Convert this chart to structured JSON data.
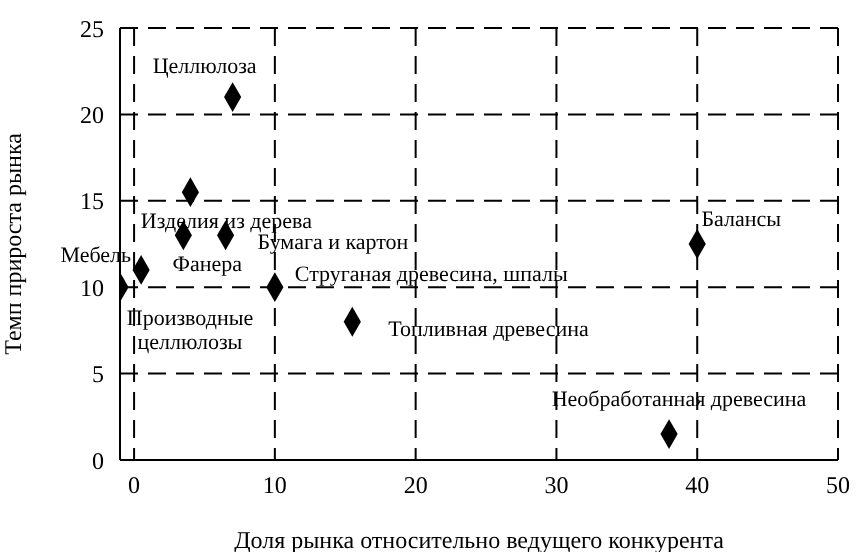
{
  "chart_data": {
    "type": "scatter",
    "xlabel": "Доля рынка относительно ведущего конкурента",
    "ylabel": "Темп прироста рынка",
    "x": [
      7,
      4,
      3.5,
      6.5,
      0.5,
      -1,
      10,
      15.5,
      40,
      38
    ],
    "values": [
      21,
      15.5,
      13,
      13,
      11,
      10,
      10,
      8,
      12.5,
      1.5
    ],
    "color": "#000000",
    "marker": "diamond",
    "xlim": [
      -1,
      50
    ],
    "xticks": [
      0,
      10,
      20,
      30,
      40,
      50
    ],
    "ylim": [
      0,
      25
    ],
    "yticks": [
      0,
      5,
      10,
      15,
      20,
      25
    ],
    "grid": true,
    "annotations": [
      {
        "text": "Целлюлоза",
        "x": 7,
        "y": 21
      },
      {
        "text": "Изделия из дерева",
        "x": 4,
        "y": 15.5
      },
      {
        "text": "Фанера",
        "x": 3.5,
        "y": 13
      },
      {
        "text": "Бумага и картон",
        "x": 6.5,
        "y": 13
      },
      {
        "text": "Мебель",
        "x": 0.5,
        "y": 11
      },
      {
        "text": "Производные\nцеллюлозы",
        "x": -1,
        "y": 10
      },
      {
        "text": "Струганая древесина, шпалы",
        "x": 10,
        "y": 10
      },
      {
        "text": "Топливная древесина",
        "x": 15.5,
        "y": 8
      },
      {
        "text": "Балансы",
        "x": 40,
        "y": 12.5
      },
      {
        "text": "Необработанная древесина",
        "x": 38,
        "y": 1.5
      }
    ]
  }
}
